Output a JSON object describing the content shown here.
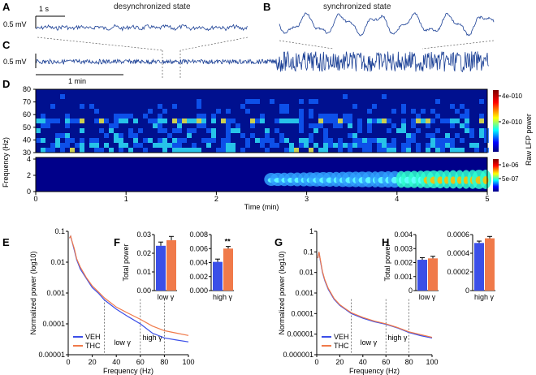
{
  "panels": {
    "A": "A",
    "B": "B",
    "C": "C",
    "D": "D",
    "E": "E",
    "F": "F",
    "G": "G",
    "H": "H"
  },
  "traces": {
    "desync_label": "desynchronized state",
    "sync_label": "synchronized state",
    "scale_time_short": "1 s",
    "scale_amp": "0.5 mV",
    "scale_time_long": "1 min"
  },
  "spectrogram": {
    "ylabel": "Frequency (Hz)",
    "xlabel": "Time (min)",
    "high_yticks": [
      "80",
      "70",
      "60",
      "50",
      "40",
      "30"
    ],
    "low_yticks": [
      "4",
      "2",
      "0"
    ],
    "xticks": [
      "0",
      "1",
      "2",
      "3",
      "4",
      "5"
    ],
    "colorbar_label": "Raw LFP power",
    "colorbar_high_ticks": [
      "4e-010",
      "2e-010"
    ],
    "colorbar_low_ticks": [
      "1e-06",
      "5e-07"
    ]
  },
  "colors": {
    "veh": "#3b4fe8",
    "thc": "#f07a4a",
    "signal": "#1a3f95"
  },
  "chart_data": [
    {
      "id": "E",
      "type": "line",
      "xlabel": "Frequency (Hz)",
      "ylabel": "Normalized power (log10)",
      "xlim": [
        0,
        100
      ],
      "ylim": [
        1e-05,
        0.1
      ],
      "yscale": "log",
      "xticks": [
        "0",
        "20",
        "40",
        "60",
        "80",
        "100"
      ],
      "yticks": [
        "0.1",
        "0.01",
        "0.001",
        "0.0001",
        "0.00001"
      ],
      "x": [
        1,
        2,
        3,
        5,
        7,
        10,
        15,
        20,
        25,
        30,
        40,
        50,
        60,
        70,
        80,
        90,
        100
      ],
      "series": [
        {
          "name": "VEH",
          "values": [
            0.06,
            0.07,
            0.05,
            0.025,
            0.012,
            0.006,
            0.003,
            0.0015,
            0.001,
            0.0006,
            0.0003,
            0.00017,
            0.0001,
            5e-05,
            3.5e-05,
            3e-05,
            2.6e-05
          ]
        },
        {
          "name": "THC",
          "values": [
            0.06,
            0.07,
            0.05,
            0.028,
            0.013,
            0.007,
            0.0032,
            0.0017,
            0.0011,
            0.0007,
            0.00035,
            0.00022,
            0.00014,
            8.5e-05,
            6e-05,
            5e-05,
            4.2e-05
          ]
        }
      ],
      "annotations": [
        "low γ",
        "high γ"
      ],
      "vlines": [
        30,
        60,
        80
      ]
    },
    {
      "id": "F-low",
      "type": "bar",
      "ylabel": "Total power",
      "categories": [
        "low γ"
      ],
      "series": [
        {
          "name": "VEH",
          "values": [
            0.024
          ],
          "err": [
            0.002
          ]
        },
        {
          "name": "THC",
          "values": [
            0.027
          ],
          "err": [
            0.002
          ]
        }
      ],
      "ylim": [
        0,
        0.03
      ],
      "yticks": [
        "0.00",
        "0.01",
        "0.02",
        "0.03"
      ]
    },
    {
      "id": "F-high",
      "type": "bar",
      "categories": [
        "high γ"
      ],
      "series": [
        {
          "name": "VEH",
          "values": [
            0.0041
          ],
          "err": [
            0.0004
          ]
        },
        {
          "name": "THC",
          "values": [
            0.006
          ],
          "err": [
            0.0003
          ]
        }
      ],
      "ylim": [
        0,
        0.008
      ],
      "yticks": [
        "0.000",
        "0.002",
        "0.004",
        "0.006",
        "0.008"
      ],
      "annotation": "**"
    },
    {
      "id": "G",
      "type": "line",
      "xlabel": "Frequency (Hz)",
      "ylabel": "Normalized power (log10)",
      "xlim": [
        0,
        100
      ],
      "ylim": [
        1e-06,
        1
      ],
      "yscale": "log",
      "xticks": [
        "0",
        "20",
        "40",
        "60",
        "80",
        "100"
      ],
      "yticks": [
        "1",
        "0.1",
        "0.01",
        "0.001",
        "0.0001",
        "0.00001",
        "0.000001"
      ],
      "x": [
        1,
        2,
        3,
        5,
        7,
        10,
        15,
        20,
        25,
        30,
        40,
        50,
        60,
        70,
        80,
        90,
        100
      ],
      "series": [
        {
          "name": "VEH",
          "values": [
            0.05,
            0.1,
            0.04,
            0.01,
            0.004,
            0.0015,
            0.0005,
            0.00025,
            0.00016,
            0.0001,
            6e-05,
            4e-05,
            3e-05,
            2e-05,
            1.2e-05,
            8.5e-06,
            6.5e-06
          ]
        },
        {
          "name": "THC",
          "values": [
            0.05,
            0.1,
            0.045,
            0.011,
            0.0045,
            0.0017,
            0.00055,
            0.00027,
            0.00017,
            0.00011,
            6.5e-05,
            4.3e-05,
            3.2e-05,
            2.1e-05,
            1.3e-05,
            9.5e-06,
            7e-06
          ]
        }
      ],
      "annotations": [
        "low γ",
        "high γ"
      ],
      "vlines": [
        30,
        60,
        80
      ]
    },
    {
      "id": "H-low",
      "type": "bar",
      "ylabel": "Total power",
      "categories": [
        "low γ"
      ],
      "series": [
        {
          "name": "VEH",
          "values": [
            0.0022
          ],
          "err": [
            0.00015
          ]
        },
        {
          "name": "THC",
          "values": [
            0.0023
          ],
          "err": [
            0.00015
          ]
        }
      ],
      "ylim": [
        0,
        0.004
      ],
      "yticks": [
        "0",
        "0.001",
        "0.002",
        "0.003",
        "0.004"
      ]
    },
    {
      "id": "H-high",
      "type": "bar",
      "categories": [
        "high γ"
      ],
      "series": [
        {
          "name": "VEH",
          "values": [
            0.00051
          ],
          "err": [
            2e-05
          ]
        },
        {
          "name": "THC",
          "values": [
            0.00056
          ],
          "err": [
            2e-05
          ]
        }
      ],
      "ylim": [
        0,
        0.0006
      ],
      "yticks": [
        "0",
        "0.0002",
        "0.0004",
        "0.0006"
      ]
    }
  ]
}
